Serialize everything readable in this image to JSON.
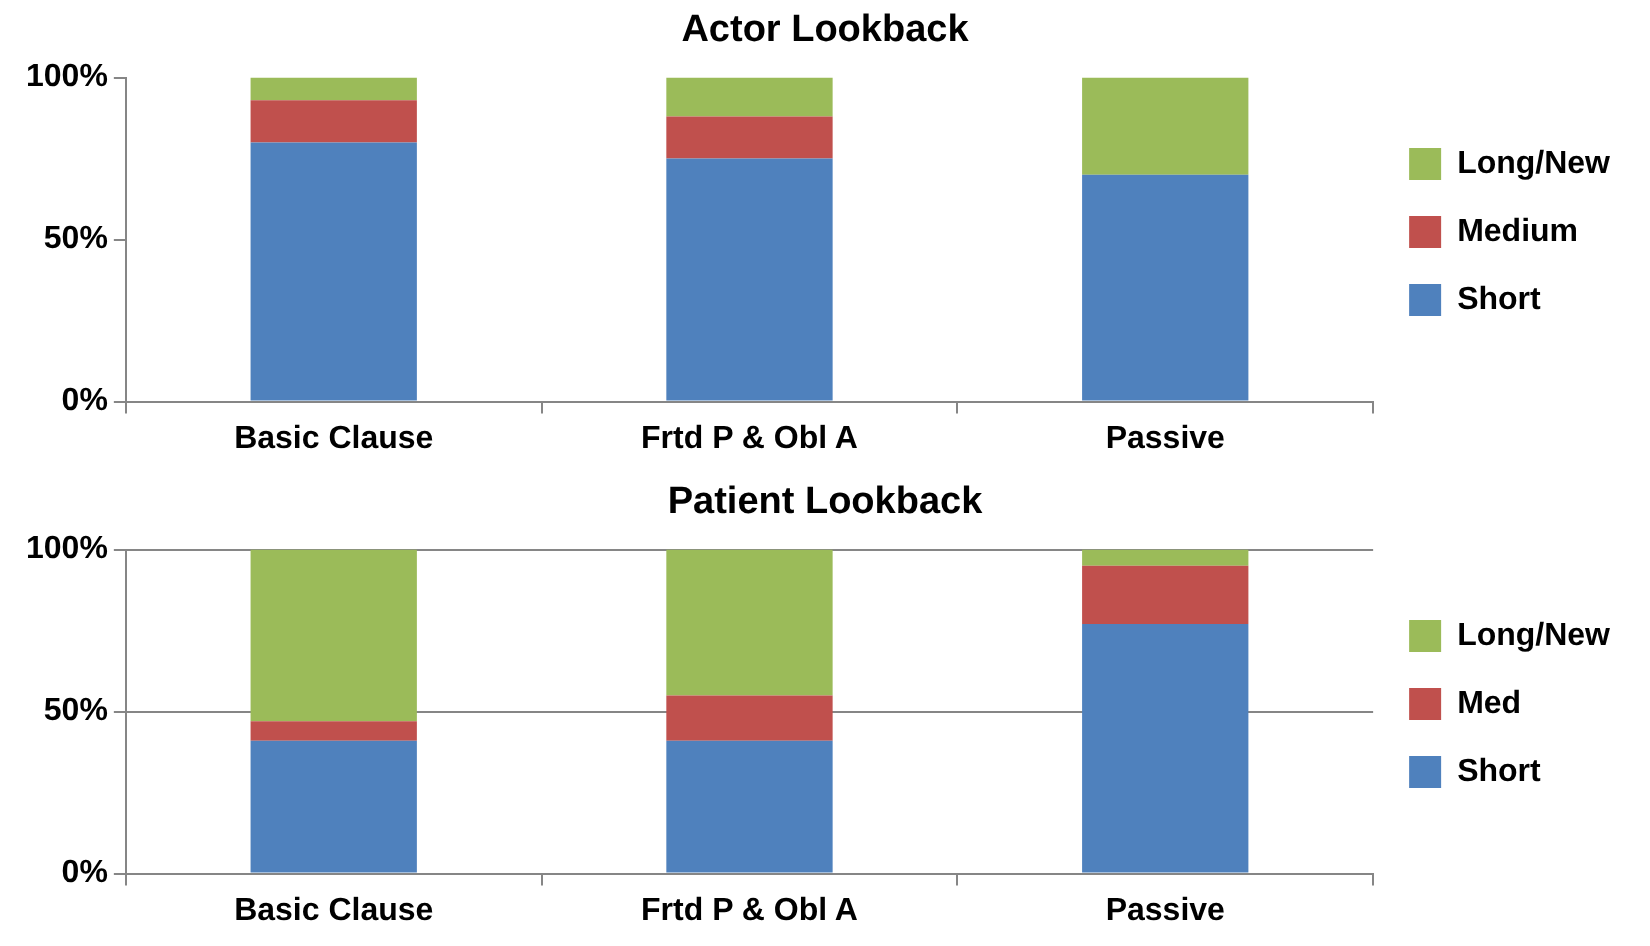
{
  "chart_data": [
    {
      "type": "bar",
      "title": "Actor Lookback",
      "stacked": true,
      "categories": [
        "Basic Clause",
        "Frtd P & Obl A",
        "Passive"
      ],
      "series": [
        {
          "name": "Short",
          "color": "#4f81bd",
          "values": [
            80,
            75,
            70
          ]
        },
        {
          "name": "Medium",
          "color": "#c0504d",
          "values": [
            13,
            13,
            0
          ]
        },
        {
          "name": "Long/New",
          "color": "#9bbb59",
          "values": [
            7,
            12,
            30
          ]
        }
      ],
      "ylim": [
        0,
        100
      ],
      "yticks": [
        {
          "value": 0,
          "label": "0%"
        },
        {
          "value": 50,
          "label": "50%"
        },
        {
          "value": 100,
          "label": "100%"
        }
      ],
      "grid": false,
      "legend": "right"
    },
    {
      "type": "bar",
      "title": "Patient Lookback",
      "stacked": true,
      "categories": [
        "Basic Clause",
        "Frtd P & Obl A",
        "Passive"
      ],
      "series": [
        {
          "name": "Short",
          "color": "#4f81bd",
          "values": [
            41,
            41,
            77
          ]
        },
        {
          "name": "Med",
          "color": "#c0504d",
          "values": [
            6,
            14,
            18
          ]
        },
        {
          "name": "Long/New",
          "color": "#9bbb59",
          "values": [
            53,
            45,
            5
          ]
        }
      ],
      "ylim": [
        0,
        100
      ],
      "yticks": [
        {
          "value": 0,
          "label": "0%"
        },
        {
          "value": 50,
          "label": "50%"
        },
        {
          "value": 100,
          "label": "100%"
        }
      ],
      "grid": "y",
      "legend": "right"
    }
  ]
}
